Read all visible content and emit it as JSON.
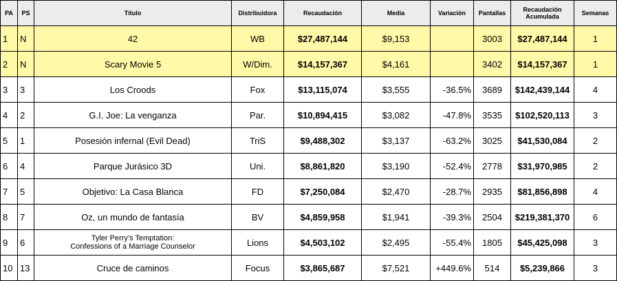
{
  "headers": {
    "pa": "PA",
    "ps": "PS",
    "title": "Título",
    "distributor": "Distribuidora",
    "gross": "Recaudación",
    "average": "Media",
    "change": "Variación",
    "screens": "Pantallas",
    "cumulative_line1": "Recaudación",
    "cumulative_line2": "Acumulada",
    "weeks": "Semanas"
  },
  "rows": [
    {
      "pa": "1",
      "ps": "N",
      "title": "42",
      "distributor": "WB",
      "gross": "$27,487,144",
      "average": "$9,153",
      "change": "",
      "screens": "3003",
      "cumulative": "$27,487,144",
      "weeks": "1",
      "highlight": true
    },
    {
      "pa": "2",
      "ps": "N",
      "title": "Scary Movie 5",
      "distributor": "W/Dim.",
      "gross": "$14,157,367",
      "average": "$4,161",
      "change": "",
      "screens": "3402",
      "cumulative": "$14,157,367",
      "weeks": "1",
      "highlight": true
    },
    {
      "pa": "3",
      "ps": "3",
      "title": "Los Croods",
      "distributor": "Fox",
      "gross": "$13,115,074",
      "average": "$3,555",
      "change": "-36.5%",
      "screens": "3689",
      "cumulative": "$142,439,144",
      "weeks": "4",
      "highlight": false
    },
    {
      "pa": "4",
      "ps": "2",
      "title": "G.I. Joe: La venganza",
      "distributor": "Par.",
      "gross": "$10,894,415",
      "average": "$3,082",
      "change": "-47.8%",
      "screens": "3535",
      "cumulative": "$102,520,113",
      "weeks": "3",
      "highlight": false
    },
    {
      "pa": "5",
      "ps": "1",
      "title": "Posesión infernal (Evil Dead)",
      "distributor": "TriS",
      "gross": "$9,488,302",
      "average": "$3,137",
      "change": "-63.2%",
      "screens": "3025",
      "cumulative": "$41,530,084",
      "weeks": "2",
      "highlight": false
    },
    {
      "pa": "6",
      "ps": "4",
      "title": "Parque Jurásico 3D",
      "distributor": "Uni.",
      "gross": "$8,861,820",
      "average": "$3,190",
      "change": "-52.4%",
      "screens": "2778",
      "cumulative": "$31,970,985",
      "weeks": "2",
      "highlight": false
    },
    {
      "pa": "7",
      "ps": "5",
      "title": "Objetivo: La Casa Blanca",
      "distributor": "FD",
      "gross": "$7,250,084",
      "average": "$2,470",
      "change": "-28.7%",
      "screens": "2935",
      "cumulative": "$81,856,898",
      "weeks": "4",
      "highlight": false
    },
    {
      "pa": "8",
      "ps": "7",
      "title": "Oz, un mundo de fantasía",
      "distributor": "BV",
      "gross": "$4,859,958",
      "average": "$1,941",
      "change": "-39.3%",
      "screens": "2504",
      "cumulative": "$219,381,370",
      "weeks": "6",
      "highlight": false
    },
    {
      "pa": "9",
      "ps": "6",
      "title_line1": "Tyler Perry's Temptation:",
      "title_line2": "Confessions of a Marriage Counselor",
      "distributor": "Lions",
      "gross": "$4,503,102",
      "average": "$2,495",
      "change": "-55.4%",
      "screens": "1805",
      "cumulative": "$45,425,098",
      "weeks": "3",
      "highlight": false
    },
    {
      "pa": "10",
      "ps": "13",
      "title": "Cruce de caminos",
      "distributor": "Focus",
      "gross": "$3,865,687",
      "average": "$7,521",
      "change": "+449.6%",
      "screens": "514",
      "cumulative": "$5,239,866",
      "weeks": "3",
      "highlight": false
    }
  ]
}
